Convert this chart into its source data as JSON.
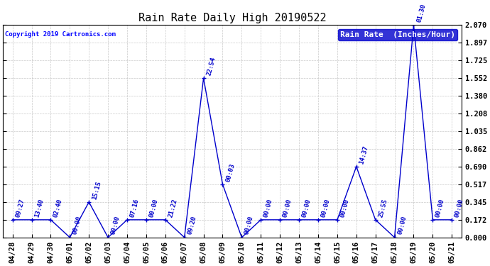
{
  "title": "Rain Rate Daily High 20190522",
  "copyright": "Copyright 2019 Cartronics.com",
  "legend_label": "Rain Rate  (Inches/Hour)",
  "x_labels": [
    "04/28",
    "04/29",
    "04/30",
    "05/01",
    "05/02",
    "05/03",
    "05/04",
    "05/05",
    "05/06",
    "05/07",
    "05/08",
    "05/09",
    "05/10",
    "05/11",
    "05/12",
    "05/13",
    "05/14",
    "05/15",
    "05/16",
    "05/17",
    "05/18",
    "05/19",
    "05/20",
    "05/21"
  ],
  "y_values": [
    0.172,
    0.172,
    0.172,
    0.0,
    0.345,
    0.0,
    0.172,
    0.172,
    0.172,
    0.0,
    1.552,
    0.517,
    0.0,
    0.172,
    0.172,
    0.172,
    0.172,
    0.172,
    0.69,
    0.172,
    0.0,
    2.07,
    0.172,
    0.172
  ],
  "ann_map": {
    "0": "09:27",
    "1": "13:40",
    "2": "02:40",
    "3": "00:00",
    "4": "15:15",
    "5": "00:00",
    "6": "07:16",
    "7": "00:00",
    "8": "21:22",
    "9": "09:20",
    "10": "22:54",
    "11": "00:03",
    "12": "00:00",
    "13": "00:00",
    "14": "00:00",
    "15": "00:00",
    "16": "00:00",
    "17": "00:00",
    "18": "14:37",
    "19": "25:55",
    "20": "00:00",
    "21": "01:30",
    "22": "00:00",
    "23": "00:00"
  },
  "line_color": "#0000CC",
  "marker_color": "#0000CC",
  "background_color": "#ffffff",
  "grid_color": "#bbbbbb",
  "ylim": [
    0.0,
    2.07
  ],
  "yticks": [
    0.0,
    0.172,
    0.345,
    0.517,
    0.69,
    0.862,
    1.035,
    1.208,
    1.38,
    1.552,
    1.725,
    1.897,
    2.07
  ],
  "title_fontsize": 11,
  "annotation_fontsize": 6.5,
  "axis_label_fontsize": 7.5,
  "legend_fontsize": 8
}
